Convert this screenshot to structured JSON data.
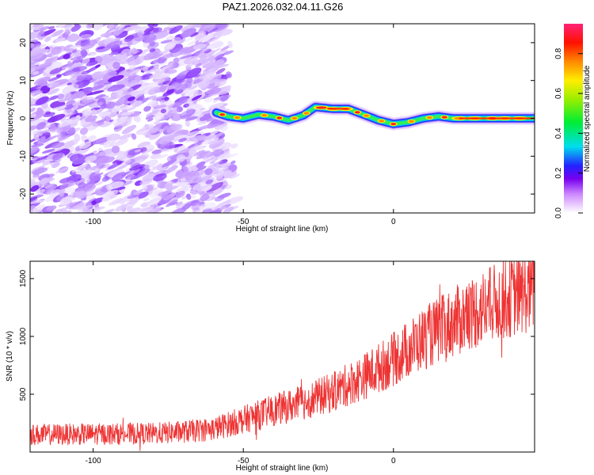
{
  "page": {
    "title": "PAZ1.2026.032.04.11.G26"
  },
  "chart_data": [
    {
      "type": "heatmap",
      "title": "PAZ1.2026.032.04.11.G26",
      "xlabel": "Height of straight line (km)",
      "ylabel": "Frequency (Hz)",
      "xlim": [
        -121,
        47
      ],
      "ylim": [
        -25,
        25
      ],
      "x_ticks": [
        -100,
        -50,
        0
      ],
      "y_ticks": [
        -20,
        -10,
        0,
        10,
        20
      ],
      "ridge": {
        "x": [
          -59,
          -55,
          -50,
          -45,
          -40,
          -35,
          -30,
          -26,
          -20,
          -15,
          -10,
          -5,
          0,
          5,
          10,
          15,
          20,
          25,
          30,
          35,
          40,
          47
        ],
        "y": [
          1.5,
          0.5,
          0,
          1.0,
          0.5,
          -0.5,
          0.8,
          3,
          2.5,
          2.5,
          1.0,
          -0.5,
          -1.5,
          -1,
          0,
          0.5,
          0,
          0,
          0,
          0,
          0,
          0
        ]
      },
      "colorbar": {
        "label": "Normalized spectral amplitude",
        "ticks": [
          0.0,
          0.2,
          0.4,
          0.6,
          0.8
        ],
        "range": [
          0,
          0.95
        ]
      }
    },
    {
      "type": "line",
      "xlabel": "Height of straight line (km)",
      "ylabel": "SNR (10 * v/v)",
      "xlim": [
        -121,
        47
      ],
      "ylim": [
        0,
        1650
      ],
      "x_ticks": [
        -100,
        -50,
        0
      ],
      "y_ticks": [
        500,
        1000,
        1500
      ],
      "series": [
        {
          "name": "SNR",
          "color": "#ee3333",
          "trend": {
            "x": [
              -121,
              -100,
              -80,
              -70,
              -60,
              -50,
              -40,
              -30,
              -20,
              -10,
              0,
              10,
              20,
              30,
              40,
              47
            ],
            "y": [
              150,
              155,
              160,
              175,
              200,
              280,
              360,
              430,
              520,
              650,
              800,
              980,
              1120,
              1250,
              1350,
              1400
            ]
          }
        }
      ]
    }
  ]
}
